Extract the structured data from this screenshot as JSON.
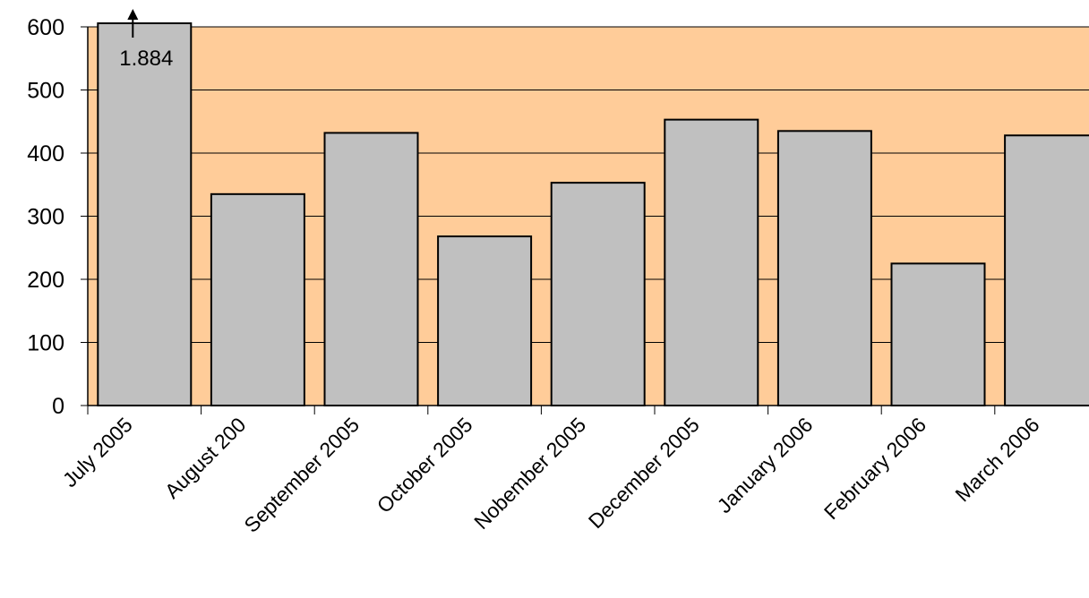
{
  "chart_data": {
    "type": "bar",
    "categories": [
      "July 2005",
      "August 200",
      "September 2005",
      "October 2005",
      "Nobember 2005",
      "December 2005",
      "January 2006",
      "February 2006",
      "March 2006"
    ],
    "values": [
      1884,
      335,
      432,
      268,
      353,
      453,
      435,
      225,
      428
    ],
    "value_labels": [
      "1.884",
      null,
      null,
      null,
      null,
      null,
      null,
      null,
      null
    ],
    "color": "#c0c0c0",
    "plot_background": "#ffcc99",
    "ylim": [
      0,
      600
    ],
    "yticks": [
      0,
      100,
      200,
      300,
      400,
      500,
      600
    ],
    "grid": true
  }
}
